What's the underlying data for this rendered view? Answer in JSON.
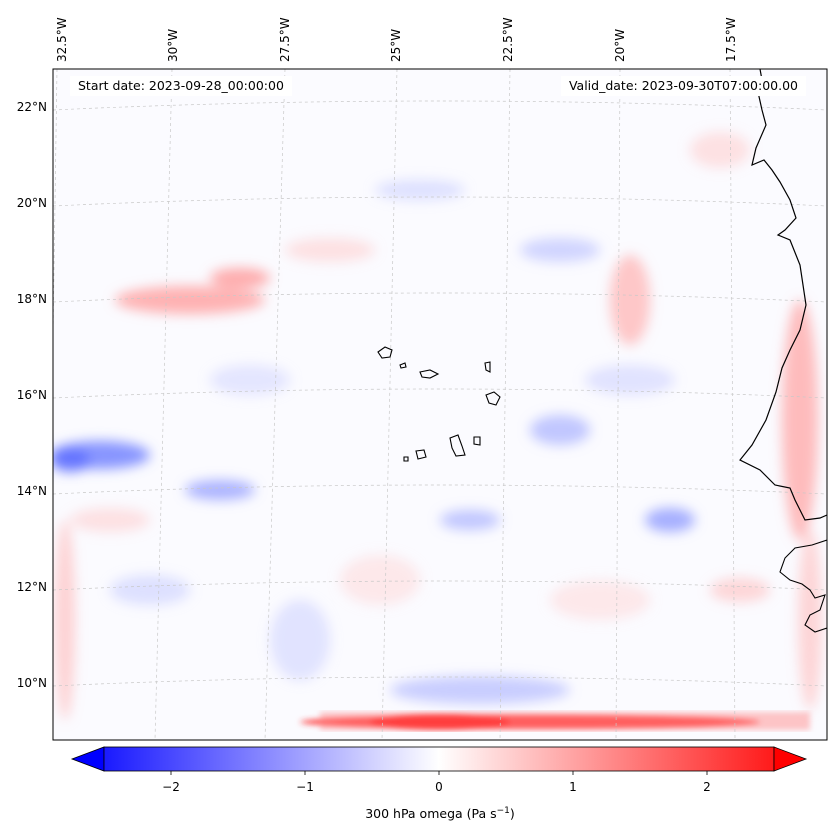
{
  "map": {
    "start_date": "Start date: 2023-09-28_00:00:00",
    "valid_date": "Valid_date: 2023-09-30T07:00:00.00",
    "lon_labels": [
      "32.5°W",
      "30°W",
      "27.5°W",
      "25°W",
      "22.5°W",
      "20°W",
      "17.5°W"
    ],
    "lat_labels": [
      "22°N",
      "20°N",
      "18°N",
      "16°N",
      "14°N",
      "12°N",
      "10°N"
    ],
    "field": "300 hPa omega",
    "region": "Cape Verde islands and West African coast",
    "projection_grid": "dashed gray graticule"
  },
  "colorbar": {
    "title_prefix": "300 hPa omega (Pa s",
    "title_exp": "−1",
    "title_suffix": ")",
    "ticks": [
      "−2",
      "−1",
      "0",
      "1",
      "2"
    ],
    "tick_values": [
      -2,
      -1,
      0,
      1,
      2
    ],
    "range": [
      -2.5,
      2.5
    ],
    "colormap": "bwr",
    "extend": "both"
  },
  "colors": {
    "negative": "#0000ff",
    "neutral": "#ffffff",
    "positive": "#ff0000",
    "coastline": "#000000",
    "grid": "#c8c8c8"
  }
}
